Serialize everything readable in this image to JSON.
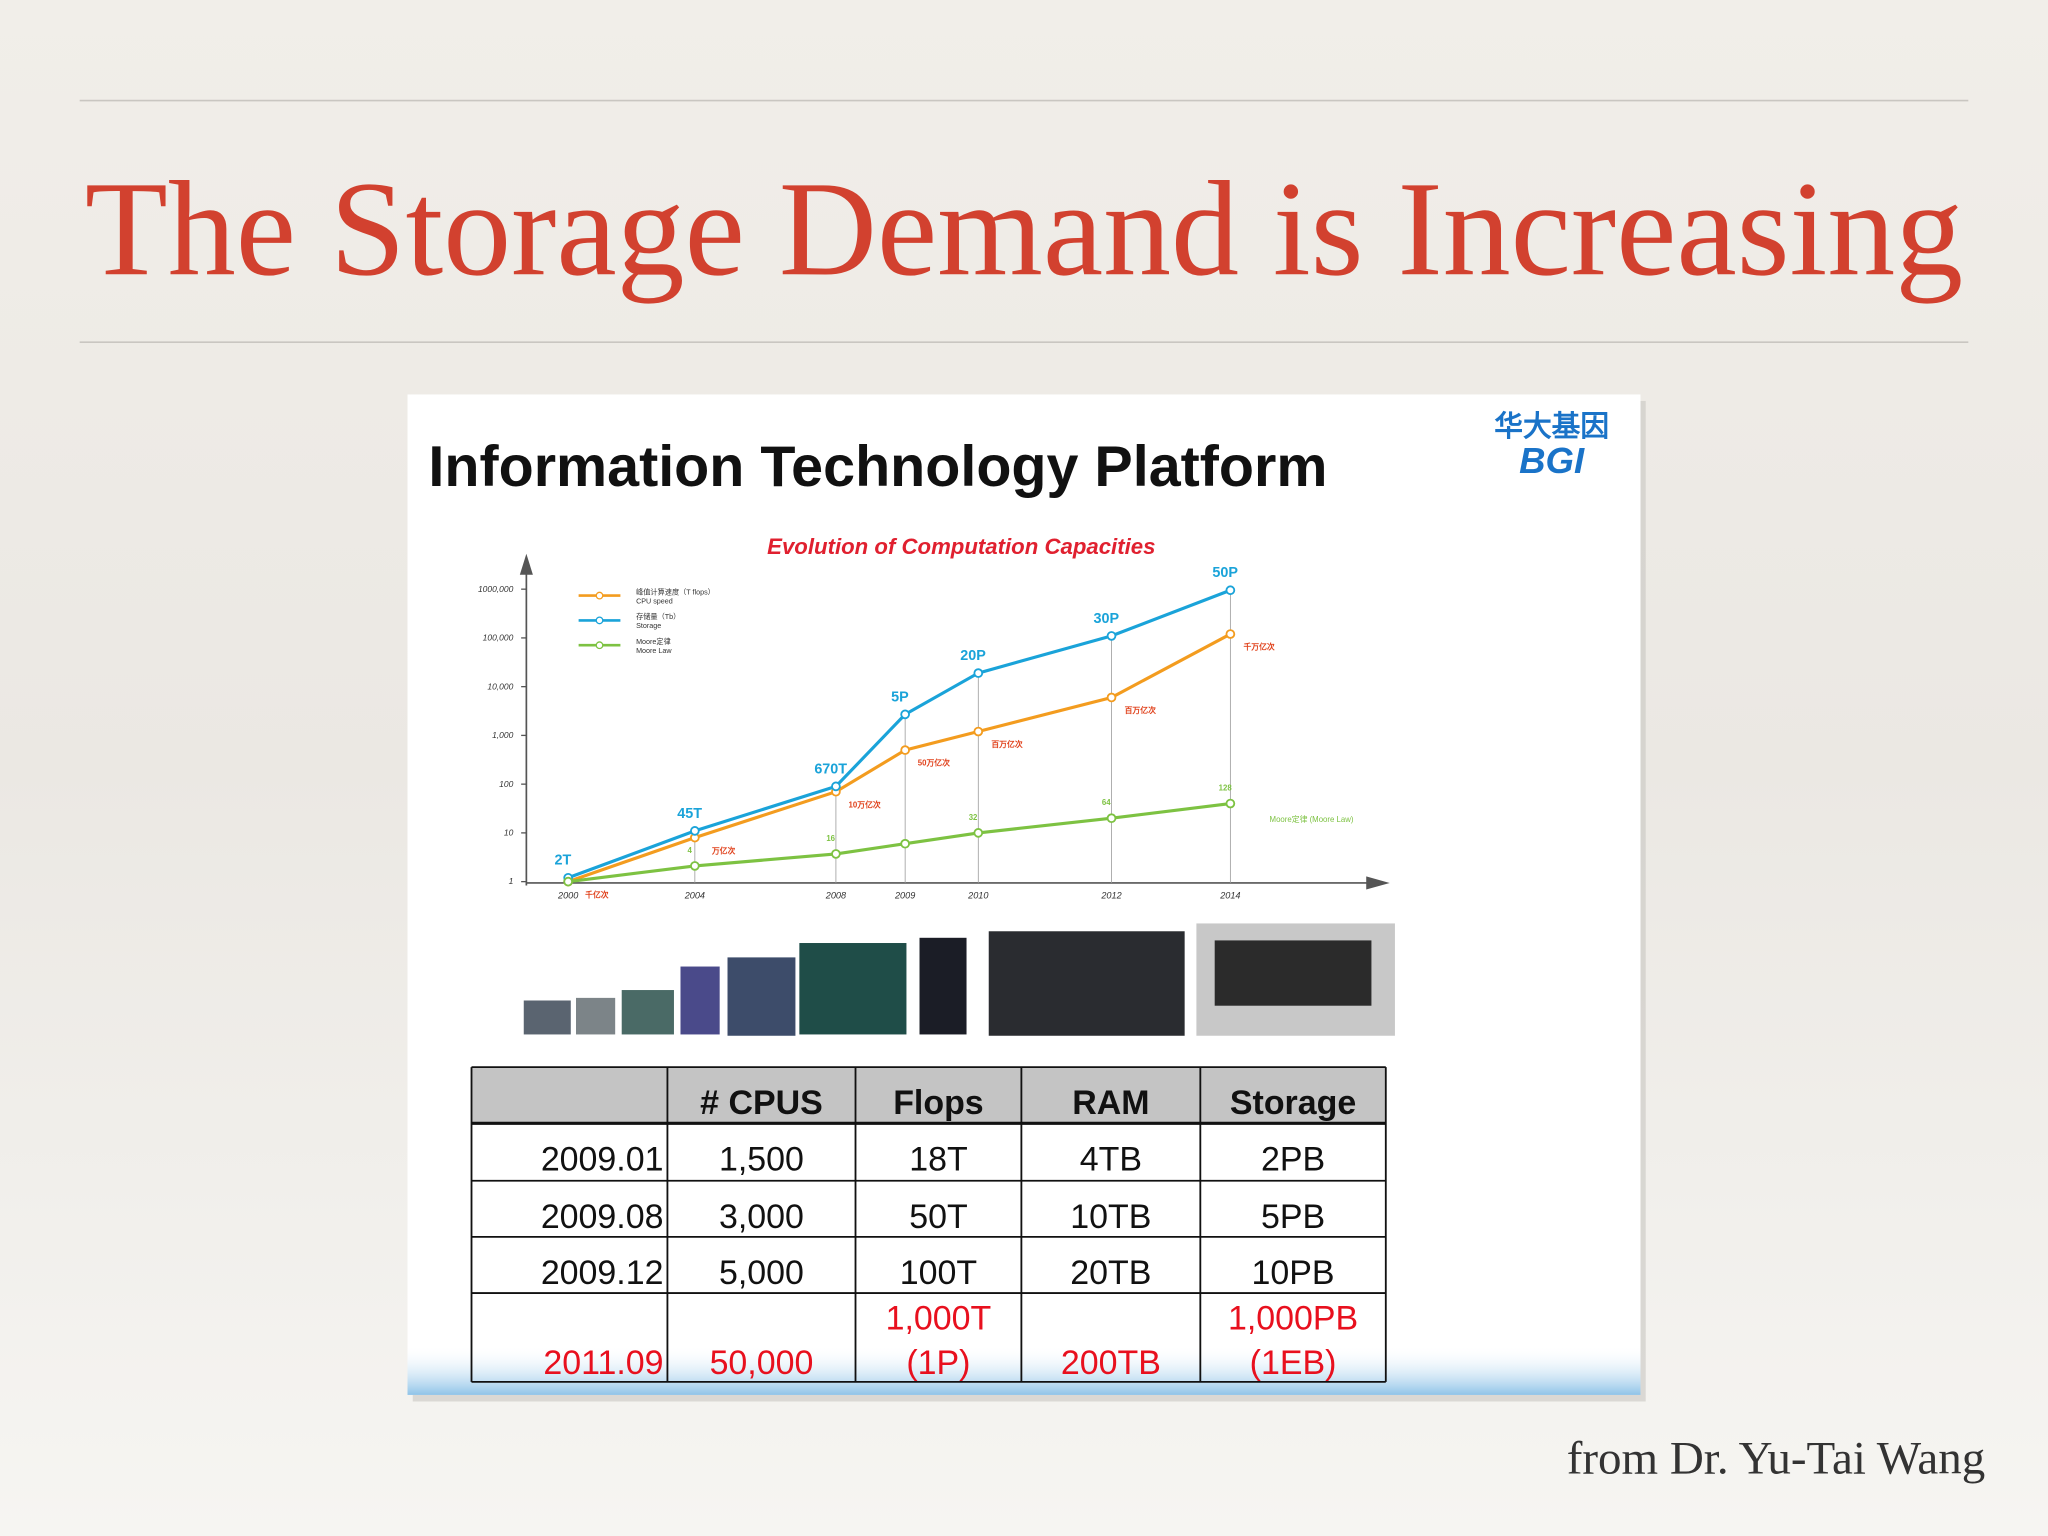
{
  "slide": {
    "title": "The Storage Demand is Increasing",
    "credit": "from Dr. Yu-Tai Wang"
  },
  "figure": {
    "title": "Information Technology Platform",
    "logo_cn": "华大基因",
    "logo_en": "BGI"
  },
  "chart_data": {
    "type": "line",
    "title": "Evolution of Computation Capacities",
    "categories": [
      "2000",
      "2004",
      "2008",
      "2009",
      "2010",
      "2012",
      "2014"
    ],
    "log_scale": true,
    "ylim": [
      1,
      5000000
    ],
    "yticks": [
      1,
      10,
      100,
      {
        "value": 1000,
        "label": "1,000"
      },
      {
        "value": 10000,
        "label": "10,000"
      },
      {
        "value": 100000,
        "label": "100,000"
      },
      {
        "value": 1000000,
        "label": "1000,000"
      }
    ],
    "series": [
      {
        "name": "CPU speed",
        "name_cn": "峰值计算速度（T flops）",
        "color": "#f39c1f",
        "values": [
          1,
          8,
          70,
          500,
          1200,
          6000,
          120000
        ],
        "point_labels": [
          "千亿次",
          "万亿次",
          "10万亿次",
          "50万亿次",
          "百万亿次",
          "百万亿次",
          "千万亿次"
        ]
      },
      {
        "name": "Storage",
        "name_cn": "存储量（Tb）",
        "color": "#1aa3d9",
        "values": [
          1.2,
          11,
          90,
          2700,
          19000,
          110000,
          950000
        ],
        "point_labels": [
          "2T",
          "45T",
          "670T",
          "5P",
          "20P",
          "30P",
          "50P"
        ]
      },
      {
        "name": "Moore Law",
        "name_cn": "Moore定律",
        "color": "#7dc242",
        "values": [
          1,
          2.1,
          3.7,
          6,
          10,
          20,
          40
        ],
        "point_labels": [
          null,
          "4",
          "16",
          null,
          "32",
          "64",
          "128"
        ],
        "end_label": "Moore定律 (Moore Law)"
      }
    ]
  },
  "table": {
    "header": [
      null,
      "# CPUS",
      "Flops",
      "RAM",
      "Storage"
    ],
    "rows": [
      [
        [
          "2009.01"
        ],
        [
          "1,500"
        ],
        [
          "18T"
        ],
        [
          "4TB"
        ],
        [
          "2PB"
        ]
      ],
      [
        [
          "2009.08"
        ],
        [
          "3,000"
        ],
        [
          "50T"
        ],
        [
          "10TB"
        ],
        [
          "5PB"
        ]
      ],
      [
        [
          "2009.12"
        ],
        [
          "5,000"
        ],
        [
          "100T"
        ],
        [
          "20TB"
        ],
        [
          "10PB"
        ]
      ],
      [
        [
          "2011.09"
        ],
        [
          "50,000"
        ],
        [
          "1,000T",
          "(1P)"
        ],
        [
          "200TB"
        ],
        [
          "1,000PB",
          "(1EB)"
        ]
      ]
    ],
    "highlight_row": 3,
    "highlight_color": "#e8101e"
  }
}
